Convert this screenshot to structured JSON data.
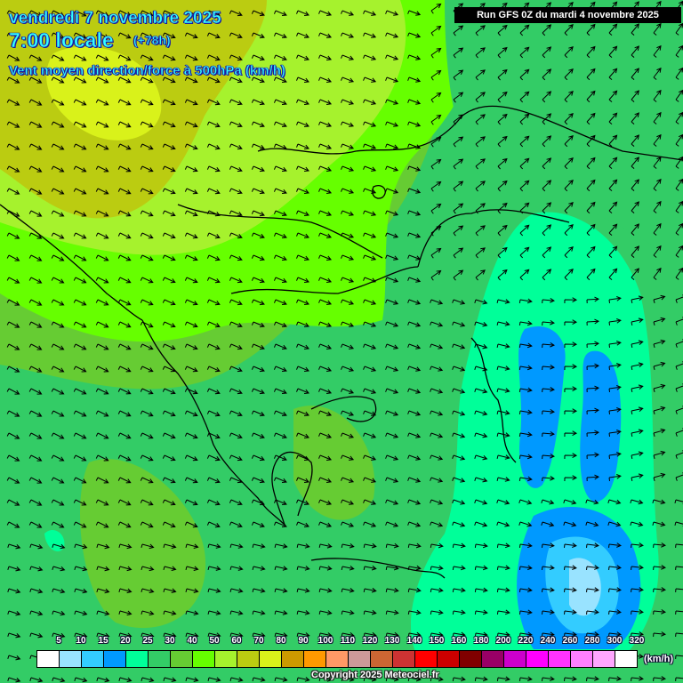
{
  "header": {
    "date": "vendredi 7 novembre 2025",
    "time": "7:00 locale",
    "lead": "(+78h)",
    "description": "Vent moyen direction/force à 500hPa (km/h)",
    "run": "Run GFS 0Z du mardi 4 novembre 2025"
  },
  "legend": {
    "unit": "(km/h)",
    "labels": [
      "5",
      "10",
      "15",
      "20",
      "25",
      "30",
      "40",
      "50",
      "60",
      "70",
      "80",
      "90",
      "100",
      "110",
      "120",
      "130",
      "140",
      "150",
      "160",
      "180",
      "200",
      "220",
      "240",
      "260",
      "280",
      "300",
      "320"
    ],
    "colors": [
      "#ffffff",
      "#99e3ff",
      "#33ccff",
      "#0099ff",
      "#00ff99",
      "#33cc66",
      "#66cc33",
      "#66ff00",
      "#a6f22d",
      "#bbcc11",
      "#d9f21a",
      "#cc9900",
      "#ff9900",
      "#ff9966",
      "#cc9999",
      "#cc6633",
      "#cc3333",
      "#ff0000",
      "#cc0000",
      "#800000",
      "#990066",
      "#cc00cc",
      "#ff00ff",
      "#ff33ff",
      "#ff80ff",
      "#ffa6ff",
      "#ffffff"
    ]
  },
  "copyright": "Copyright 2025 Meteociel.fr"
}
